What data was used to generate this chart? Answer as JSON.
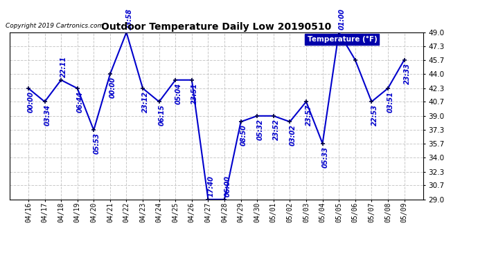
{
  "title": "Outdoor Temperature Daily Low 20190510",
  "copyright": "Copyright 2019 Cartronics.com",
  "legend_label": "Temperature (°F)",
  "ylim": [
    29.0,
    49.0
  ],
  "yticks": [
    29.0,
    30.7,
    32.3,
    34.0,
    35.7,
    37.3,
    39.0,
    40.7,
    42.3,
    44.0,
    45.7,
    47.3,
    49.0
  ],
  "line_color": "#0000cc",
  "marker_color": "#000044",
  "label_color": "#0000cc",
  "bg_color": "#ffffff",
  "grid_color": "#bbbbbb",
  "dates": [
    "04/16",
    "04/17",
    "04/18",
    "04/19",
    "04/20",
    "04/21",
    "04/22",
    "04/23",
    "04/24",
    "04/25",
    "04/26",
    "04/27",
    "04/28",
    "04/29",
    "04/30",
    "05/01",
    "05/02",
    "05/03",
    "05/04",
    "05/05",
    "05/06",
    "05/07",
    "05/08",
    "05/09"
  ],
  "values": [
    42.3,
    40.7,
    43.3,
    42.3,
    37.3,
    44.0,
    49.0,
    42.3,
    40.7,
    43.3,
    43.3,
    29.0,
    29.0,
    38.3,
    39.0,
    39.0,
    38.3,
    40.7,
    35.7,
    49.0,
    45.7,
    40.7,
    42.3,
    45.7
  ],
  "time_labels": [
    "00:00",
    "03:34",
    "22:11",
    "06:44",
    "05:53",
    "00:00",
    "23:58",
    "23:12",
    "06:15",
    "05:04",
    "23:51",
    "17:40",
    "06:00",
    "08:50",
    "05:32",
    "23:52",
    "03:02",
    "23:57",
    "05:33",
    "01:00",
    "",
    "22:53",
    "03:51",
    "23:33"
  ],
  "label_above": [
    false,
    false,
    true,
    false,
    false,
    false,
    true,
    false,
    false,
    false,
    false,
    true,
    true,
    false,
    false,
    false,
    false,
    false,
    false,
    true,
    false,
    false,
    false,
    false
  ]
}
